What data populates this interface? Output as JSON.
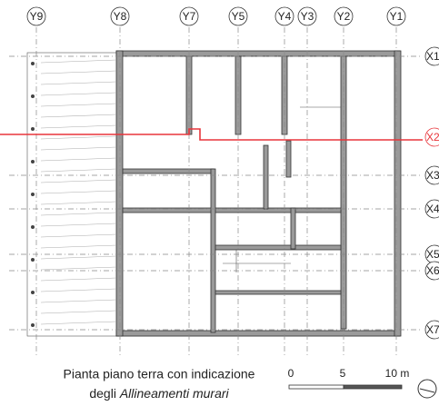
{
  "grid_labels": {
    "y_axes": [
      "Y9",
      "Y8",
      "Y7",
      "Y5",
      "Y4",
      "Y3",
      "Y2",
      "Y1"
    ],
    "x_axes": [
      "X1",
      "X2",
      "X3",
      "X4",
      "X5",
      "X6",
      "X7"
    ]
  },
  "caption": {
    "line1": "Pianta piano terra con indicazione",
    "line2_prefix": "degli",
    "line2_italic": "Allineamenti murari"
  },
  "scale": {
    "labels": [
      "0",
      "5",
      "10 m"
    ]
  }
}
